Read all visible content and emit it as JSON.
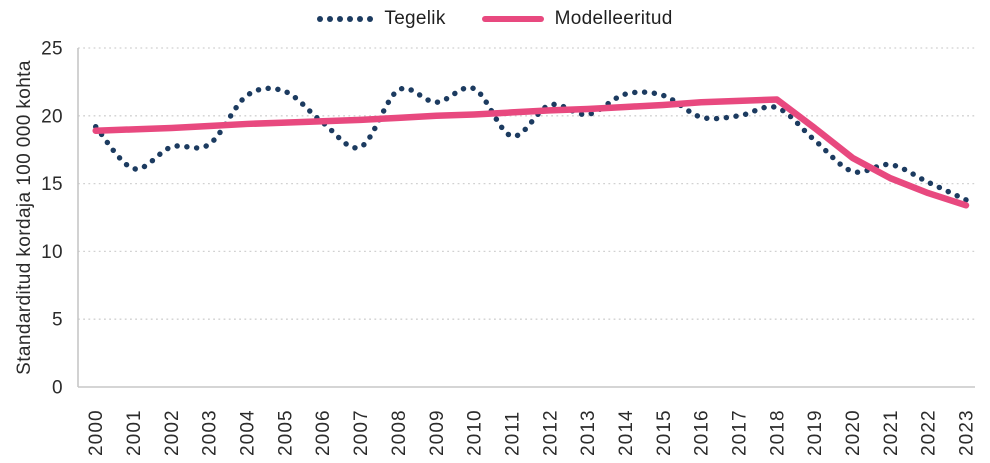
{
  "chart_data": {
    "type": "line",
    "title": "",
    "xlabel": "",
    "ylabel": "Standarditud kordaja 100 000 kohta",
    "ylim": [
      0,
      25
    ],
    "yticks": [
      0,
      5,
      10,
      15,
      20,
      25
    ],
    "grid": "horizontal-dotted",
    "legend_position": "top-center",
    "categories": [
      "2000",
      "2001",
      "2002",
      "2003",
      "2004",
      "2005",
      "2006",
      "2007",
      "2008",
      "2009",
      "2010",
      "2011",
      "2012",
      "2013",
      "2014",
      "2015",
      "2016",
      "2017",
      "2018",
      "2019",
      "2020",
      "2021",
      "2022",
      "2023"
    ],
    "series": [
      {
        "name": "Tegelik",
        "style": "dotted",
        "color": "#1c3b60",
        "values": [
          19.2,
          16.1,
          17.7,
          17.9,
          21.5,
          21.8,
          19.5,
          17.7,
          21.9,
          21.0,
          22.0,
          18.5,
          20.8,
          20.1,
          21.6,
          21.5,
          19.9,
          20.0,
          20.6,
          18.2,
          15.9,
          16.4,
          15.1,
          13.8
        ]
      },
      {
        "name": "Modelleeritud",
        "style": "solid",
        "color": "#e8497f",
        "values": [
          18.9,
          19.0,
          19.1,
          19.25,
          19.4,
          19.5,
          19.6,
          19.7,
          19.85,
          20.0,
          20.1,
          20.25,
          20.4,
          20.5,
          20.65,
          20.8,
          21.0,
          21.1,
          21.2,
          19.1,
          16.9,
          15.4,
          14.3,
          13.4
        ]
      }
    ]
  },
  "legend": {
    "items": [
      {
        "label": "Tegelik"
      },
      {
        "label": "Modelleeritud"
      }
    ]
  },
  "colors": {
    "background": "#ffffff",
    "grid": "#d1d1d1",
    "axis": "#c7c7c7",
    "text": "#2b2b2b"
  }
}
